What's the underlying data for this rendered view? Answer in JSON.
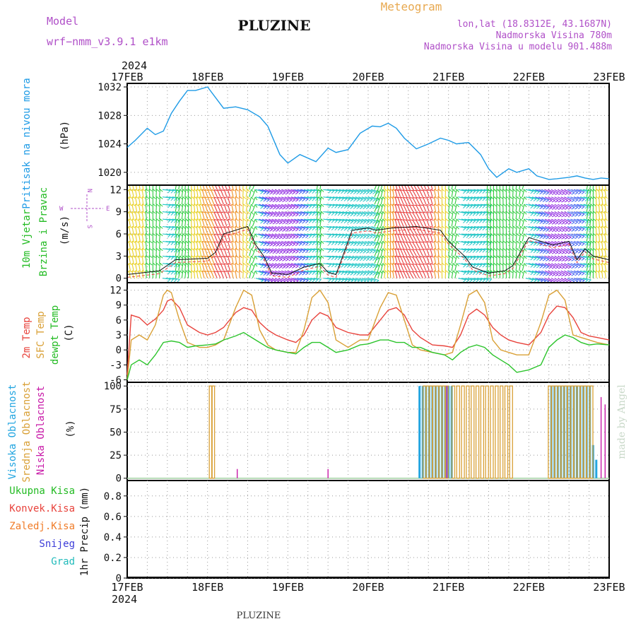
{
  "header": {
    "model_label": "Model",
    "model_value": "wrf−nmm_v3.9.1  e1km",
    "station": "PLUZINE",
    "meteogram": "Meteogram",
    "coords": "lon,lat (18.8312E, 43.1687N)",
    "altitude": "Nadmorska Visina 780m",
    "model_altitude": "Nadmorska Visina u modelu 901.488m",
    "footer": "PLUZINE",
    "made_by": "made by Angel"
  },
  "colors": {
    "pressure": "#1e9be6",
    "t2m": "#e8433c",
    "sfc": "#d9a036",
    "dewpt": "#2cc42c",
    "high_cloud": "#22a5e0",
    "mid_cloud": "#d9a036",
    "low_cloud": "#c81aa8",
    "model_text": "#b050c8",
    "meteogram_text": "#e8a950",
    "wind_label": "#22bb22",
    "total_precip": "#22bb22",
    "conv_precip": "#e8433c",
    "frz_precip": "#f07c28",
    "snow": "#3c3cd8",
    "hail": "#22bbbb"
  },
  "chart_data": [
    {
      "type": "line",
      "panel": "pressure",
      "ylabel_title": "Pritisak na nivou mora",
      "ylabel_unit": "(hPa)",
      "x_ticks": [
        "17FEB",
        "18FEB",
        "19FEB",
        "20FEB",
        "21FEB",
        "22FEB",
        "23FEB"
      ],
      "x_year": "2024",
      "ylim": [
        1018.2,
        1032.5
      ],
      "y_ticks": [
        "1020",
        "1024",
        "1028",
        "1032"
      ],
      "y_tick_values": [
        1020,
        1024,
        1028,
        1032
      ],
      "grid": true,
      "series": [
        {
          "name": "pressure",
          "x": [
            0,
            0.1,
            0.25,
            0.35,
            0.45,
            0.55,
            0.65,
            0.75,
            0.85,
            1.0,
            1.1,
            1.2,
            1.35,
            1.5,
            1.65,
            1.75,
            1.9,
            2.0,
            2.15,
            2.35,
            2.5,
            2.6,
            2.75,
            2.9,
            3.05,
            3.15,
            3.25,
            3.35,
            3.45,
            3.6,
            3.75,
            3.9,
            4.0,
            4.1,
            4.25,
            4.4,
            4.5,
            4.6,
            4.75,
            4.85,
            5.0,
            5.1,
            5.25,
            5.35,
            5.5,
            5.6,
            5.7,
            5.8,
            5.9,
            6.0
          ],
          "y": [
            1023.5,
            1024.5,
            1026.2,
            1025.3,
            1025.8,
            1028.3,
            1030.0,
            1031.5,
            1031.5,
            1032.0,
            1030.5,
            1029.0,
            1029.2,
            1028.8,
            1027.8,
            1026.5,
            1022.5,
            1021.3,
            1022.5,
            1021.5,
            1023.4,
            1022.8,
            1023.2,
            1025.5,
            1026.5,
            1026.4,
            1026.9,
            1026.2,
            1024.8,
            1023.3,
            1024.0,
            1024.8,
            1024.5,
            1024.0,
            1024.2,
            1022.5,
            1020.5,
            1019.3,
            1020.5,
            1020.0,
            1020.5,
            1019.5,
            1019.0,
            1019.1,
            1019.3,
            1019.5,
            1019.2,
            1019.0,
            1019.2,
            1019.1
          ]
        }
      ]
    },
    {
      "type": "wind_barbs",
      "panel": "wind",
      "ylabel_title_1": "10m Vjetar",
      "ylabel_title_2": "Brzina i Pravac",
      "ylabel_unit": "(m/s)",
      "compass": {
        "north": "N",
        "south": "S",
        "west": "W",
        "east": "E"
      },
      "ylim": [
        -0.6,
        12.6
      ],
      "y_ticks": [
        "0",
        "3",
        "6",
        "9",
        "12"
      ],
      "y_tick_values": [
        0,
        3,
        6,
        9,
        12
      ],
      "grid": true,
      "series": [
        {
          "name": "wind speed",
          "x": [
            0,
            0.4,
            0.6,
            1.0,
            1.1,
            1.2,
            1.5,
            1.6,
            1.7,
            1.8,
            2.0,
            2.2,
            2.4,
            2.5,
            2.6,
            2.8,
            3.0,
            3.1,
            3.3,
            3.6,
            3.9,
            4.0,
            4.2,
            4.3,
            4.5,
            4.7,
            4.8,
            5.0,
            5.3,
            5.5,
            5.6,
            5.7,
            5.8,
            6.0
          ],
          "y": [
            0.5,
            1.0,
            2.5,
            2.7,
            3.5,
            6.0,
            7.0,
            4.5,
            3.0,
            0.7,
            0.5,
            1.5,
            2.0,
            0.8,
            0.5,
            6.5,
            6.8,
            6.5,
            6.8,
            7.0,
            6.5,
            5.0,
            3.0,
            1.5,
            0.7,
            1.0,
            1.7,
            5.5,
            4.5,
            5.0,
            2.5,
            4.0,
            3.0,
            2.5
          ]
        }
      ]
    },
    {
      "type": "line",
      "panel": "temperature",
      "ylabel_title_1": "2m Temp",
      "ylabel_title_2": "SFC Temp",
      "ylabel_title_3": "dewpt Temp",
      "ylabel_unit": "(C)",
      "ylim": [
        -6.5,
        13.5
      ],
      "y_ticks": [
        "-6",
        "-3",
        "0",
        "3",
        "6",
        "9",
        "12"
      ],
      "y_tick_values": [
        -6,
        -3,
        0,
        3,
        6,
        9,
        12
      ],
      "grid": true,
      "series": [
        {
          "name": "2m Temp",
          "x": [
            0,
            0.05,
            0.15,
            0.25,
            0.35,
            0.45,
            0.5,
            0.55,
            0.65,
            0.75,
            0.9,
            1.0,
            1.1,
            1.2,
            1.35,
            1.45,
            1.55,
            1.65,
            1.75,
            1.85,
            2.0,
            2.1,
            2.2,
            2.3,
            2.4,
            2.5,
            2.6,
            2.75,
            2.9,
            3.0,
            3.15,
            3.25,
            3.35,
            3.45,
            3.55,
            3.65,
            3.8,
            3.95,
            4.05,
            4.15,
            4.25,
            4.35,
            4.45,
            4.55,
            4.65,
            4.75,
            4.85,
            5.0,
            5.15,
            5.25,
            5.35,
            5.45,
            5.55,
            5.65,
            5.75,
            5.85,
            6.0
          ],
          "y": [
            -5.0,
            7.0,
            6.5,
            5.0,
            6.2,
            8.0,
            9.8,
            10.2,
            8.5,
            5.0,
            3.5,
            3.0,
            3.5,
            4.5,
            7.5,
            8.5,
            8.0,
            5.5,
            4.0,
            3.0,
            2.0,
            1.5,
            3.0,
            6.0,
            7.5,
            6.8,
            4.5,
            3.5,
            3.0,
            3.0,
            6.0,
            8.0,
            8.5,
            7.0,
            4.0,
            2.5,
            1.0,
            0.8,
            0.5,
            3.0,
            7.0,
            8.2,
            7.0,
            4.5,
            3.0,
            2.0,
            1.5,
            1.0,
            3.5,
            7.0,
            8.8,
            8.5,
            6.5,
            3.5,
            2.8,
            2.5,
            2.0
          ]
        },
        {
          "name": "SFC Temp",
          "x": [
            0,
            0.05,
            0.15,
            0.25,
            0.35,
            0.45,
            0.5,
            0.55,
            0.65,
            0.75,
            0.9,
            1.0,
            1.1,
            1.2,
            1.35,
            1.45,
            1.55,
            1.65,
            1.75,
            1.85,
            2.0,
            2.1,
            2.2,
            2.3,
            2.4,
            2.5,
            2.6,
            2.75,
            2.9,
            3.0,
            3.15,
            3.25,
            3.35,
            3.45,
            3.55,
            3.65,
            3.8,
            3.95,
            4.05,
            4.15,
            4.25,
            4.35,
            4.45,
            4.55,
            4.65,
            4.75,
            4.85,
            5.0,
            5.15,
            5.25,
            5.35,
            5.45,
            5.55,
            5.65,
            5.75,
            5.85,
            6.0
          ],
          "y": [
            -6.0,
            2.0,
            3.0,
            2.0,
            5.0,
            11.0,
            12.0,
            11.5,
            6.0,
            1.5,
            0.5,
            0.5,
            1.0,
            2.0,
            8.5,
            12.0,
            11.0,
            4.0,
            1.0,
            0.0,
            -0.5,
            -0.5,
            4.0,
            10.5,
            12.0,
            9.5,
            2.0,
            0.5,
            2.0,
            2.0,
            8.5,
            11.5,
            11.0,
            6.0,
            1.0,
            0.0,
            -0.5,
            -1.0,
            -0.5,
            5.0,
            11.0,
            12.0,
            9.5,
            2.0,
            0.0,
            -0.5,
            -1.0,
            -1.0,
            5.5,
            11.0,
            12.0,
            10.0,
            3.0,
            2.5,
            2.0,
            1.5,
            1.0
          ]
        },
        {
          "name": "dewpt Temp",
          "x": [
            0,
            0.05,
            0.15,
            0.25,
            0.35,
            0.45,
            0.55,
            0.65,
            0.75,
            0.85,
            1.0,
            1.1,
            1.2,
            1.35,
            1.45,
            1.55,
            1.65,
            1.75,
            1.85,
            2.0,
            2.1,
            2.2,
            2.3,
            2.4,
            2.5,
            2.6,
            2.75,
            2.9,
            3.0,
            3.15,
            3.25,
            3.35,
            3.45,
            3.55,
            3.65,
            3.8,
            3.95,
            4.05,
            4.15,
            4.25,
            4.35,
            4.45,
            4.55,
            4.65,
            4.75,
            4.85,
            5.0,
            5.15,
            5.25,
            5.35,
            5.45,
            5.55,
            5.65,
            5.75,
            5.85,
            6.0
          ],
          "y": [
            -6.0,
            -3.0,
            -2.0,
            -3.0,
            -1.0,
            1.5,
            1.8,
            1.5,
            0.5,
            0.8,
            1.0,
            1.2,
            2.0,
            2.8,
            3.5,
            2.5,
            1.5,
            0.5,
            0.0,
            -0.5,
            -0.8,
            0.5,
            1.5,
            1.5,
            0.5,
            -0.5,
            0.0,
            1.0,
            1.2,
            2.0,
            2.0,
            1.5,
            1.5,
            0.5,
            0.5,
            -0.5,
            -1.0,
            -2.0,
            -0.5,
            0.5,
            1.0,
            0.5,
            -1.0,
            -2.0,
            -3.0,
            -4.5,
            -4.0,
            -3.0,
            0.5,
            2.0,
            3.0,
            2.5,
            1.5,
            1.0,
            1.2,
            1.0
          ]
        }
      ]
    },
    {
      "type": "bar",
      "panel": "cloud",
      "ylabel_title_1": "Visoka Oblacnost",
      "ylabel_title_2": "Srednja Oblacnost",
      "ylabel_title_3": "Niska Oblacnost",
      "ylabel_unit": "(%)",
      "ylim": [
        -2.5,
        104
      ],
      "y_ticks": [
        "0",
        "25",
        "50",
        "75",
        "100"
      ],
      "y_tick_values": [
        0,
        25,
        50,
        75,
        100
      ],
      "grid": true,
      "series": [
        {
          "name": "Visoka Oblacnost",
          "x": [
            3.64,
            3.68,
            3.72,
            3.76,
            3.8,
            3.84,
            3.88,
            3.92,
            3.96,
            4.0,
            4.04,
            5.28,
            5.32,
            5.36,
            5.4,
            5.44,
            5.48,
            5.52,
            5.56,
            5.6,
            5.64,
            5.68,
            5.72,
            5.76,
            5.8,
            5.84
          ],
          "y": [
            100,
            100,
            100,
            100,
            100,
            100,
            100,
            100,
            100,
            100,
            100,
            100,
            100,
            100,
            100,
            100,
            100,
            100,
            100,
            100,
            100,
            100,
            100,
            100,
            36,
            20
          ]
        },
        {
          "name": "Srednja Oblacnost",
          "x": [
            1.04,
            1.07,
            3.7,
            3.74,
            3.78,
            3.82,
            3.86,
            3.9,
            3.94,
            3.98,
            4.06,
            4.12,
            4.18,
            4.24,
            4.3,
            4.36,
            4.42,
            4.48,
            4.54,
            4.6,
            4.66,
            4.72,
            4.78,
            5.26,
            5.3,
            5.34,
            5.38,
            5.42,
            5.46,
            5.5,
            5.54,
            5.58,
            5.62,
            5.66,
            5.7,
            5.74,
            5.78
          ],
          "y": [
            100,
            100,
            100,
            100,
            100,
            100,
            100,
            100,
            100,
            100,
            100,
            100,
            100,
            100,
            100,
            100,
            100,
            100,
            100,
            100,
            100,
            100,
            100,
            100,
            100,
            100,
            100,
            100,
            100,
            100,
            100,
            100,
            100,
            100,
            100,
            100,
            100
          ]
        },
        {
          "name": "Niska Oblacnost",
          "x": [
            1.37,
            2.5,
            3.98,
            5.9,
            5.95
          ],
          "y": [
            10,
            10,
            100,
            88,
            80
          ]
        }
      ]
    },
    {
      "type": "bar",
      "panel": "precip",
      "ylabel_unit": "1hr Precip (mm)",
      "legend": [
        "Ukupna  Kisa",
        "Konvek.Kisa",
        "Zaledj.Kisa",
        "Snijeg",
        "Grad"
      ],
      "ylim": [
        0,
        0.95
      ],
      "y_ticks": [
        "0",
        "0.2",
        "0.4",
        "0.6",
        "0.8"
      ],
      "y_tick_values": [
        0,
        0.2,
        0.4,
        0.6,
        0.8
      ],
      "grid": true,
      "series": []
    }
  ]
}
